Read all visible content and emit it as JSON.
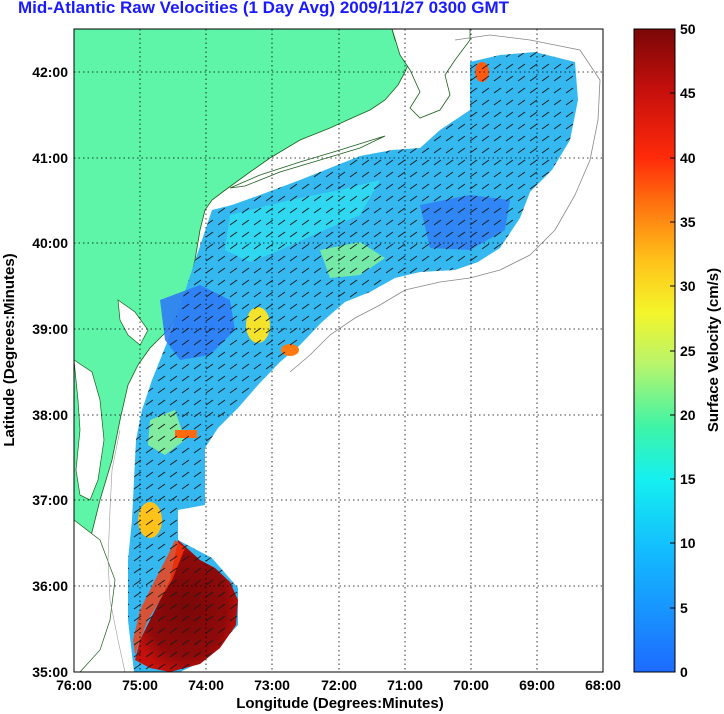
{
  "title": "Mid-Atlantic Raw Velocities (1 Day Avg) 2009/11/27 0300 GMT",
  "x_axis": {
    "label": "Longitude (Degrees:Minutes)",
    "ticks": [
      "76:00",
      "75:00",
      "74:00",
      "73:00",
      "72:00",
      "71:00",
      "70:00",
      "69:00",
      "68:00"
    ]
  },
  "y_axis": {
    "label": "Latitude (Degrees:Minutes)",
    "ticks": [
      "42:00",
      "41:00",
      "40:00",
      "39:00",
      "38:00",
      "37:00",
      "36:00",
      "35:00"
    ]
  },
  "colorbar": {
    "label": "Surface Velocity (cm/s)",
    "ticks": [
      "50",
      "45",
      "40",
      "35",
      "30",
      "25",
      "20",
      "15",
      "10",
      "5",
      "0"
    ],
    "range": [
      0,
      50
    ]
  },
  "colors": {
    "land": "#5ff5a8",
    "title": "#1a1aff",
    "low": "#1e6bff",
    "mid": "#15f0f0",
    "high": "#7a0707"
  }
}
